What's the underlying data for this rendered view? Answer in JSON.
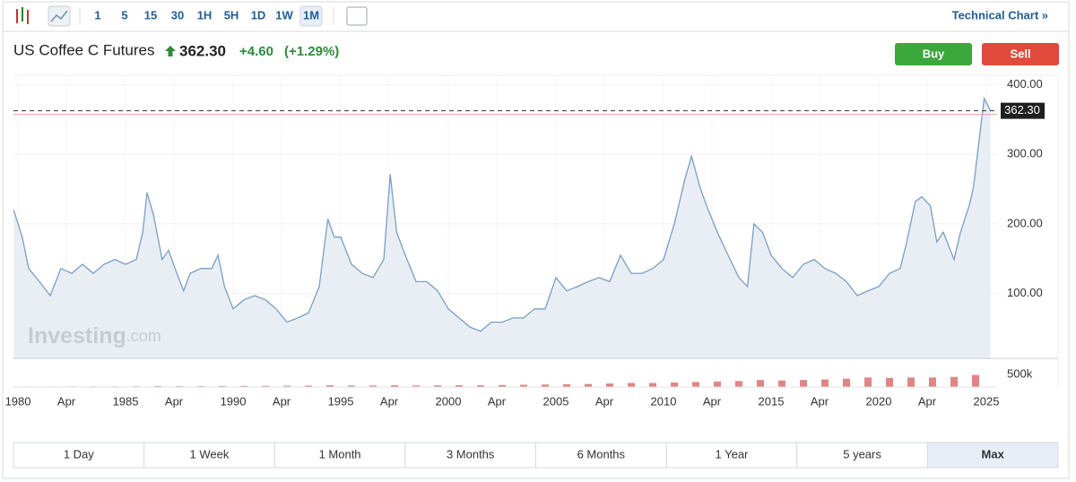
{
  "toolbar": {
    "intervals": [
      "1",
      "5",
      "15",
      "30",
      "1H",
      "5H",
      "1D",
      "1W",
      "1M"
    ],
    "selected": "1M",
    "link": "Technical Chart »"
  },
  "header": {
    "title": "US Coffee C Futures",
    "price": "362.30",
    "change": "+4.60",
    "change_percent": "(+1.29%)",
    "buy": "Buy",
    "sell": "Sell"
  },
  "watermark": {
    "brand": "Investing",
    "suffix": ".com"
  },
  "ranges": {
    "items": [
      "1 Day",
      "1 Week",
      "1 Month",
      "3 Months",
      "6 Months",
      "1 Year",
      "5 years",
      "Max"
    ],
    "selected": "Max"
  },
  "chart_data": {
    "type": "area",
    "color": "#7a9fc4",
    "fill": "#e9eef5",
    "grid": true,
    "x": [
      1979.8,
      1980.2,
      1980.5,
      1981,
      1981.5,
      1982,
      1982.5,
      1983,
      1983.5,
      1984,
      1984.5,
      1985,
      1985.5,
      1985.8,
      1986,
      1986.3,
      1986.7,
      1987,
      1987.3,
      1987.7,
      1988,
      1988.5,
      1989,
      1989.3,
      1989.6,
      1990,
      1990.5,
      1991,
      1991.5,
      1992,
      1992.5,
      1993,
      1993.5,
      1994,
      1994.4,
      1994.7,
      1995,
      1995.5,
      1996,
      1996.5,
      1997,
      1997.3,
      1997.6,
      1998,
      1998.5,
      1999,
      1999.5,
      2000,
      2000.5,
      2001,
      2001.5,
      2002,
      2002.5,
      2003,
      2003.5,
      2004,
      2004.5,
      2005,
      2005.5,
      2006,
      2006.5,
      2007,
      2007.5,
      2008,
      2008.5,
      2009,
      2009.5,
      2010,
      2010.5,
      2011,
      2011.3,
      2011.7,
      2012,
      2012.5,
      2013,
      2013.5,
      2013.9,
      2014.2,
      2014.6,
      2015,
      2015.5,
      2016,
      2016.5,
      2017,
      2017.5,
      2018,
      2018.5,
      2019,
      2019.5,
      2020,
      2020.5,
      2021,
      2021.3,
      2021.7,
      2022,
      2022.4,
      2022.7,
      2023,
      2023.5,
      2023.8,
      2024.2,
      2024.4,
      2024.7,
      2024.9,
      2025.2
    ],
    "values": [
      220,
      181,
      136,
      117,
      97,
      136,
      129,
      142,
      129,
      142,
      149,
      142,
      149,
      188,
      245,
      213,
      149,
      162,
      136,
      104,
      129,
      136,
      136,
      155,
      110,
      78,
      91,
      97,
      91,
      78,
      59,
      65,
      72,
      110,
      207,
      181,
      181,
      142,
      129,
      123,
      149,
      271,
      188,
      155,
      117,
      117,
      104,
      78,
      65,
      52,
      46,
      59,
      59,
      65,
      65,
      78,
      78,
      123,
      104,
      110,
      117,
      123,
      117,
      155,
      129,
      129,
      136,
      149,
      200,
      265,
      297,
      252,
      226,
      188,
      155,
      123,
      110,
      200,
      188,
      155,
      136,
      123,
      142,
      149,
      136,
      129,
      117,
      97,
      104,
      110,
      129,
      136,
      174,
      232,
      239,
      226,
      174,
      188,
      149,
      188,
      226,
      252,
      329,
      380,
      362.3
    ],
    "xlim": [
      1979.79,
      2025.5
    ],
    "xticks": [
      {
        "value": 1980,
        "label": "1980"
      },
      {
        "value": 1982.25,
        "label": "Apr"
      },
      1985,
      {
        "value": 1987.25,
        "label": "Apr"
      },
      1990,
      {
        "value": 1992.25,
        "label": "Apr"
      },
      1995,
      {
        "value": 1997.25,
        "label": "Apr"
      },
      2000,
      {
        "value": 2002.25,
        "label": "Apr"
      },
      2005,
      {
        "value": 2007.25,
        "label": "Apr"
      },
      2010,
      {
        "value": 2012.25,
        "label": "Apr"
      },
      2015,
      {
        "value": 2017.25,
        "label": "Apr"
      },
      2020,
      {
        "value": 2022.25,
        "label": "Apr"
      },
      2025
    ],
    "ylim": [
      7,
      412
    ],
    "yticks": [
      {
        "value": 100,
        "label": "100.00"
      },
      {
        "value": 200,
        "label": "200.00"
      },
      {
        "value": 300,
        "label": "300.00"
      },
      {
        "value": 400,
        "label": "400.00"
      }
    ],
    "last_price": {
      "value": 362.3,
      "label": "362.30"
    },
    "volume": {
      "color": "#e08585",
      "x": [
        1980,
        1981,
        1982,
        1983,
        1984,
        1985,
        1986,
        1987,
        1988,
        1989,
        1990,
        1991,
        1992,
        1993,
        1994,
        1995,
        1996,
        1997,
        1998,
        1999,
        2000,
        2001,
        2002,
        2003,
        2004,
        2005,
        2006,
        2007,
        2008,
        2009,
        2010,
        2011,
        2012,
        2013,
        2014,
        2015,
        2016,
        2017,
        2018,
        2019,
        2020,
        2021,
        2022,
        2023,
        2024
      ],
      "values": [
        20000,
        20000,
        25000,
        25000,
        25000,
        30000,
        40000,
        35000,
        35000,
        40000,
        45000,
        45000,
        50000,
        55000,
        70000,
        60000,
        60000,
        70000,
        60000,
        65000,
        70000,
        70000,
        80000,
        90000,
        100000,
        110000,
        120000,
        140000,
        160000,
        160000,
        180000,
        200000,
        220000,
        240000,
        280000,
        260000,
        280000,
        300000,
        330000,
        380000,
        360000,
        380000,
        380000,
        400000,
        480000
      ],
      "ylim": [
        0,
        1140000
      ],
      "yticks": [
        {
          "value": 500000,
          "label": "500k"
        }
      ]
    }
  }
}
